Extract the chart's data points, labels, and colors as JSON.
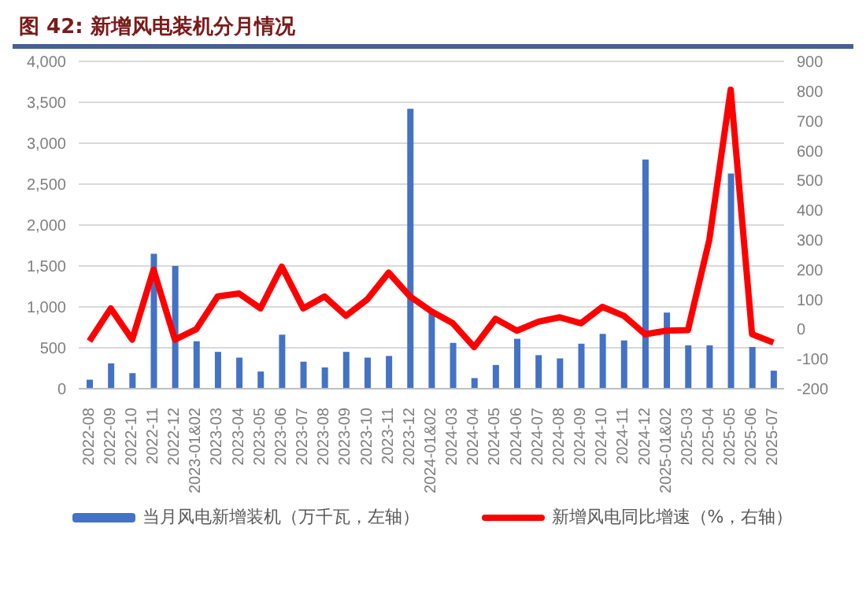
{
  "chart_data": {
    "type": "bar",
    "title": "图 42:  新增风电装机分月情况",
    "categories": [
      "2022-08",
      "2022-09",
      "2022-10",
      "2022-11",
      "2022-12",
      "2023-01&02",
      "2023-03",
      "2023-04",
      "2023-05",
      "2023-06",
      "2023-07",
      "2023-08",
      "2023-09",
      "2023-10",
      "2023-11",
      "2023-12",
      "2024-01&02",
      "2024-03",
      "2024-04",
      "2024-05",
      "2024-06",
      "2024-07",
      "2024-08",
      "2024-09",
      "2024-10",
      "2024-11",
      "2024-12",
      "2025-01&02",
      "2025-03",
      "2025-04",
      "2025-05",
      "2025-06",
      "2025-07"
    ],
    "series": [
      {
        "name": "当月风电新增装机（万千瓦，左轴）",
        "color": "#4472c4",
        "values": [
          110,
          310,
          190,
          1650,
          1500,
          580,
          450,
          380,
          210,
          660,
          330,
          260,
          450,
          380,
          400,
          3420,
          950,
          560,
          130,
          290,
          610,
          410,
          370,
          550,
          670,
          590,
          2800,
          930,
          530,
          530,
          2630,
          510,
          220
        ]
      },
      {
        "name": "新增风电同比增速（%，右轴）",
        "type": "line",
        "axis": "y2",
        "color": "#ff0000",
        "values": [
          -40,
          70,
          -35,
          200,
          -35,
          0,
          110,
          120,
          70,
          210,
          70,
          110,
          45,
          100,
          190,
          110,
          60,
          20,
          -60,
          35,
          -5,
          25,
          40,
          20,
          75,
          45,
          -17,
          -5,
          -3,
          300,
          805,
          -17,
          -45
        ]
      }
    ],
    "ylim": [
      0,
      4000
    ],
    "yticks": [
      0,
      {
        "value": 500,
        "label": "500"
      },
      {
        "value": 1000,
        "label": "1,000"
      },
      {
        "value": 1500,
        "label": "1,500"
      },
      {
        "value": 2000,
        "label": "2,000"
      },
      {
        "value": 2500,
        "label": "2,500"
      },
      {
        "value": 3000,
        "label": "3,000"
      },
      {
        "value": 3500,
        "label": "3,500"
      },
      {
        "value": 4000,
        "label": "4,000"
      }
    ],
    "y2lim": [
      -200,
      900
    ],
    "y2ticks": [
      -200,
      -100,
      0,
      100,
      200,
      300,
      400,
      500,
      600,
      700,
      800,
      900
    ],
    "grid": "y",
    "legend": "bottom",
    "marker": "none",
    "line_style": "solid"
  }
}
